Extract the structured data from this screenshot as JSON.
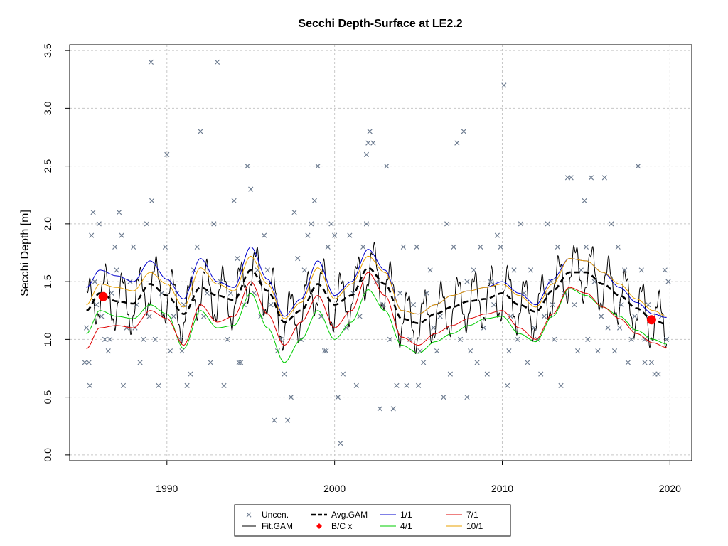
{
  "chart_data": {
    "type": "line",
    "title": "Secchi Depth-Surface at LE2.2",
    "xlabel": "",
    "ylabel": "Secchi Depth [m]",
    "xlim": [
      1984.2,
      2021.3
    ],
    "ylim": [
      -0.05,
      3.55
    ],
    "xticks": [
      1990,
      2000,
      2010,
      2020
    ],
    "yticks": [
      0.0,
      0.5,
      1.0,
      1.5,
      2.0,
      2.5,
      3.0,
      3.5
    ],
    "grid": true,
    "legend_position": "bottom",
    "legend": [
      "Uncen.",
      "Fit.GAM",
      "Avg.GAM",
      "B/C x",
      "1/1",
      "4/1",
      "7/1",
      "10/1"
    ],
    "colors": {
      "uncen": "#6b7a8f",
      "fit_gam": "#000000",
      "avg_gam": "#000000",
      "bc": "#ff0000",
      "s1_1": "#0000cc",
      "s4_1": "#00cc00",
      "s7_1": "#dd0000",
      "s10_1": "#e8a000"
    },
    "observations": [
      [
        1985.1,
        0.8
      ],
      [
        1985.2,
        1.1
      ],
      [
        1985.35,
        0.8
      ],
      [
        1985.4,
        0.6
      ],
      [
        1985.5,
        1.9
      ],
      [
        1985.6,
        2.1
      ],
      [
        1985.7,
        1.5
      ],
      [
        1985.8,
        1.3
      ],
      [
        1985.95,
        2.0
      ],
      [
        1986.1,
        1.2
      ],
      [
        1986.3,
        1.0
      ],
      [
        1986.5,
        0.9
      ],
      [
        1986.7,
        1.4
      ],
      [
        1986.9,
        1.8
      ],
      [
        1987.0,
        1.6
      ],
      [
        1987.15,
        2.1
      ],
      [
        1987.3,
        1.9
      ],
      [
        1987.4,
        0.6
      ],
      [
        1987.6,
        1.1
      ],
      [
        1987.8,
        1.5
      ],
      [
        1988.0,
        1.8
      ],
      [
        1988.2,
        1.3
      ],
      [
        1988.4,
        0.8
      ],
      [
        1988.6,
        1.0
      ],
      [
        1988.8,
        2.0
      ],
      [
        1988.95,
        1.2
      ],
      [
        1989.1,
        2.2
      ],
      [
        1989.05,
        3.4
      ],
      [
        1989.3,
        1.0
      ],
      [
        1989.5,
        0.6
      ],
      [
        1989.7,
        1.4
      ],
      [
        1989.9,
        1.8
      ],
      [
        1990.0,
        2.6
      ],
      [
        1990.2,
        0.9
      ],
      [
        1990.4,
        1.2
      ],
      [
        1990.6,
        1.4
      ],
      [
        1990.8,
        1.0
      ],
      [
        1991.0,
        1.3
      ],
      [
        1991.2,
        0.6
      ],
      [
        1991.4,
        0.7
      ],
      [
        1991.6,
        1.6
      ],
      [
        1991.8,
        1.8
      ],
      [
        1992.0,
        2.8
      ],
      [
        1992.2,
        1.2
      ],
      [
        1992.4,
        1.4
      ],
      [
        1992.6,
        0.8
      ],
      [
        1992.8,
        2.0
      ],
      [
        1993.0,
        3.4
      ],
      [
        1993.2,
        1.5
      ],
      [
        1993.4,
        0.6
      ],
      [
        1993.6,
        1.0
      ],
      [
        1993.8,
        1.4
      ],
      [
        1994.0,
        2.2
      ],
      [
        1994.2,
        1.7
      ],
      [
        1994.4,
        0.8
      ],
      [
        1994.6,
        1.3
      ],
      [
        1994.8,
        2.5
      ],
      [
        1995.0,
        2.3
      ],
      [
        1995.2,
        1.4
      ],
      [
        1995.4,
        1.6
      ],
      [
        1995.6,
        1.2
      ],
      [
        1995.8,
        1.9
      ],
      [
        1996.0,
        1.6
      ],
      [
        1996.2,
        1.3
      ],
      [
        1996.4,
        0.3
      ],
      [
        1996.6,
        0.9
      ],
      [
        1996.8,
        1.0
      ],
      [
        1997.0,
        0.7
      ],
      [
        1997.2,
        0.3
      ],
      [
        1997.4,
        0.5
      ],
      [
        1997.6,
        2.1
      ],
      [
        1997.8,
        1.7
      ],
      [
        1998.0,
        1.0
      ],
      [
        1998.2,
        1.6
      ],
      [
        1998.4,
        1.9
      ],
      [
        1998.6,
        2.0
      ],
      [
        1998.8,
        2.2
      ],
      [
        1999.0,
        2.5
      ],
      [
        1999.2,
        1.2
      ],
      [
        1999.4,
        0.9
      ],
      [
        1999.6,
        1.8
      ],
      [
        1999.8,
        2.0
      ],
      [
        2000.0,
        1.9
      ],
      [
        2000.2,
        0.5
      ],
      [
        2000.35,
        0.1
      ],
      [
        2000.5,
        0.7
      ],
      [
        2000.7,
        1.1
      ],
      [
        2000.9,
        1.9
      ],
      [
        2001.1,
        1.4
      ],
      [
        2001.3,
        0.6
      ],
      [
        2001.5,
        1.2
      ],
      [
        2001.7,
        1.8
      ],
      [
        2001.9,
        2.6
      ],
      [
        2002.0,
        2.7
      ],
      [
        2002.1,
        2.8
      ],
      [
        2002.3,
        2.7
      ],
      [
        2002.5,
        1.5
      ],
      [
        2002.7,
        0.4
      ],
      [
        2002.9,
        1.3
      ],
      [
        2003.1,
        2.5
      ],
      [
        2003.3,
        1.0
      ],
      [
        2003.5,
        0.4
      ],
      [
        2003.7,
        0.6
      ],
      [
        2003.9,
        1.4
      ],
      [
        2004.1,
        1.8
      ],
      [
        2004.3,
        0.6
      ],
      [
        2004.5,
        1.0
      ],
      [
        2004.7,
        1.3
      ],
      [
        2004.9,
        1.8
      ],
      [
        2005.1,
        0.9
      ],
      [
        2005.3,
        0.8
      ],
      [
        2005.5,
        1.4
      ],
      [
        2005.7,
        1.6
      ],
      [
        2005.9,
        1.1
      ],
      [
        2006.1,
        0.9
      ],
      [
        2006.3,
        1.2
      ],
      [
        2006.5,
        0.5
      ],
      [
        2006.7,
        2.0
      ],
      [
        2006.9,
        0.7
      ],
      [
        2007.1,
        1.8
      ],
      [
        2007.3,
        2.7
      ],
      [
        2007.5,
        1.0
      ],
      [
        2007.7,
        2.8
      ],
      [
        2007.9,
        1.5
      ],
      [
        2008.1,
        0.9
      ],
      [
        2008.3,
        1.6
      ],
      [
        2008.5,
        0.8
      ],
      [
        2008.7,
        1.8
      ],
      [
        2008.9,
        1.1
      ],
      [
        2009.1,
        0.7
      ],
      [
        2009.3,
        1.5
      ],
      [
        2009.5,
        1.3
      ],
      [
        2009.7,
        1.9
      ],
      [
        2009.9,
        1.8
      ],
      [
        2010.1,
        3.2
      ],
      [
        2010.3,
        0.6
      ],
      [
        2010.5,
        1.2
      ],
      [
        2010.7,
        1.6
      ],
      [
        2010.9,
        1.0
      ],
      [
        2011.1,
        2.0
      ],
      [
        2011.3,
        1.4
      ],
      [
        2011.5,
        0.8
      ],
      [
        2011.7,
        1.6
      ],
      [
        2011.9,
        1.1
      ],
      [
        2012.1,
        1.0
      ],
      [
        2012.3,
        0.7
      ],
      [
        2012.5,
        1.2
      ],
      [
        2012.7,
        2.0
      ],
      [
        2012.9,
        1.5
      ],
      [
        2013.1,
        1.0
      ],
      [
        2013.3,
        1.8
      ],
      [
        2013.5,
        0.6
      ],
      [
        2013.7,
        1.4
      ],
      [
        2013.9,
        2.4
      ],
      [
        2014.1,
        2.4
      ],
      [
        2014.3,
        1.3
      ],
      [
        2014.5,
        0.9
      ],
      [
        2014.7,
        1.6
      ],
      [
        2014.9,
        2.2
      ],
      [
        2015.1,
        1.0
      ],
      [
        2015.3,
        2.4
      ],
      [
        2015.5,
        1.5
      ],
      [
        2015.7,
        0.9
      ],
      [
        2015.9,
        1.2
      ],
      [
        2016.1,
        2.4
      ],
      [
        2016.3,
        1.1
      ],
      [
        2016.5,
        2.0
      ],
      [
        2016.7,
        0.9
      ],
      [
        2016.9,
        1.8
      ],
      [
        2017.1,
        1.3
      ],
      [
        2017.3,
        1.6
      ],
      [
        2017.5,
        0.8
      ],
      [
        2017.7,
        1.0
      ],
      [
        2017.9,
        1.2
      ],
      [
        2018.1,
        2.5
      ],
      [
        2018.3,
        1.6
      ],
      [
        2018.5,
        1.0
      ],
      [
        2018.7,
        1.3
      ],
      [
        2018.9,
        0.8
      ],
      [
        2019.1,
        0.7
      ],
      [
        2019.3,
        0.7
      ],
      [
        2019.5,
        1.2
      ],
      [
        2019.7,
        1.6
      ],
      [
        2019.9,
        1.5
      ],
      [
        2019.8,
        1.0
      ],
      [
        1986.6,
        1.0
      ],
      [
        1988.1,
        1.1
      ],
      [
        1990.9,
        0.9
      ],
      [
        1994.3,
        0.8
      ],
      [
        1999.5,
        0.9
      ],
      [
        2001.9,
        2.0
      ],
      [
        2005.0,
        0.6
      ],
      [
        2007.9,
        0.5
      ],
      [
        2010.4,
        0.9
      ],
      [
        2013.0,
        1.3
      ],
      [
        2015.0,
        1.8
      ],
      [
        2017.0,
        1.1
      ],
      [
        2018.5,
        0.8
      ]
    ],
    "fit_gam_daily": {
      "trend_source": "avg_gam",
      "seasonal_amplitude": 0.22,
      "cycles_per_year": 1
    },
    "avg_gam": {
      "x": [
        1985.2,
        1986.0,
        1987.0,
        1988.0,
        1989.0,
        1990.0,
        1991.0,
        1992.0,
        1993.0,
        1994.0,
        1995.0,
        1996.0,
        1997.0,
        1998.0,
        1999.0,
        2000.0,
        2001.0,
        2002.0,
        2003.0,
        2004.0,
        2005.0,
        2006.0,
        2007.0,
        2008.0,
        2009.0,
        2010.0,
        2011.0,
        2012.0,
        2013.0,
        2014.0,
        2015.0,
        2016.0,
        2017.0,
        2018.0,
        2019.0,
        2019.8
      ],
      "y": [
        1.25,
        1.4,
        1.33,
        1.31,
        1.48,
        1.38,
        1.22,
        1.45,
        1.38,
        1.34,
        1.6,
        1.42,
        1.15,
        1.25,
        1.48,
        1.3,
        1.38,
        1.62,
        1.48,
        1.18,
        1.14,
        1.22,
        1.28,
        1.33,
        1.35,
        1.4,
        1.3,
        1.24,
        1.42,
        1.58,
        1.58,
        1.48,
        1.38,
        1.27,
        1.17,
        1.13
      ]
    },
    "series": [
      {
        "name": "1/1",
        "color": "#0000cc",
        "x": [
          1985.2,
          1986.0,
          1987.0,
          1988.0,
          1989.0,
          1990.0,
          1991.0,
          1992.0,
          1993.0,
          1994.0,
          1995.0,
          1996.0,
          1997.0,
          1998.0,
          1999.0,
          2000.0,
          2001.0,
          2002.0,
          2003.0,
          2004.0,
          2005.0,
          2006.0,
          2007.0,
          2008.0,
          2009.0,
          2010.0,
          2011.0,
          2012.0,
          2013.0,
          2014.0,
          2015.0,
          2016.0,
          2017.0,
          2018.0,
          2019.0,
          2019.8
        ],
        "y": [
          1.45,
          1.6,
          1.55,
          1.5,
          1.68,
          1.52,
          1.35,
          1.7,
          1.5,
          1.45,
          1.8,
          1.52,
          1.2,
          1.35,
          1.68,
          1.38,
          1.5,
          1.78,
          1.6,
          1.25,
          1.22,
          1.3,
          1.38,
          1.42,
          1.45,
          1.5,
          1.4,
          1.3,
          1.52,
          1.7,
          1.68,
          1.58,
          1.45,
          1.32,
          1.22,
          1.19
        ]
      },
      {
        "name": "4/1",
        "color": "#00cc00",
        "x": [
          1985.2,
          1986.0,
          1987.0,
          1988.0,
          1989.0,
          1990.0,
          1991.0,
          1992.0,
          1993.0,
          1994.0,
          1995.0,
          1996.0,
          1997.0,
          1998.0,
          1999.0,
          2000.0,
          2001.0,
          2002.0,
          2003.0,
          2004.0,
          2005.0,
          2006.0,
          2007.0,
          2008.0,
          2009.0,
          2010.0,
          2011.0,
          2012.0,
          2013.0,
          2014.0,
          2015.0,
          2016.0,
          2017.0,
          2018.0,
          2019.0,
          2019.8
        ],
        "y": [
          1.05,
          1.25,
          1.2,
          1.18,
          1.3,
          1.22,
          0.92,
          1.25,
          1.1,
          1.12,
          1.4,
          1.1,
          0.8,
          1.0,
          1.25,
          1.0,
          1.15,
          1.43,
          1.25,
          0.95,
          0.88,
          0.98,
          1.05,
          1.12,
          1.18,
          1.2,
          1.05,
          0.98,
          1.2,
          1.44,
          1.38,
          1.28,
          1.2,
          1.08,
          1.0,
          0.96
        ]
      },
      {
        "name": "7/1",
        "color": "#dd0000",
        "x": [
          1985.2,
          1986.0,
          1987.0,
          1988.0,
          1989.0,
          1990.0,
          1991.0,
          1992.0,
          1993.0,
          1994.0,
          1995.0,
          1996.0,
          1997.0,
          1998.0,
          1999.0,
          2000.0,
          2001.0,
          2002.0,
          2003.0,
          2004.0,
          2005.0,
          2006.0,
          2007.0,
          2008.0,
          2009.0,
          2010.0,
          2011.0,
          2012.0,
          2013.0,
          2014.0,
          2015.0,
          2016.0,
          2017.0,
          2018.0,
          2019.0,
          2019.8
        ],
        "y": [
          0.92,
          1.1,
          1.12,
          1.1,
          1.25,
          1.18,
          0.95,
          1.3,
          1.15,
          1.2,
          1.5,
          1.22,
          0.95,
          1.15,
          1.38,
          1.1,
          1.25,
          1.58,
          1.38,
          1.02,
          0.95,
          1.05,
          1.12,
          1.18,
          1.22,
          1.25,
          1.1,
          1.0,
          1.22,
          1.45,
          1.4,
          1.28,
          1.18,
          1.05,
          0.97,
          0.93
        ]
      },
      {
        "name": "10/1",
        "color": "#e8a000",
        "x": [
          1985.2,
          1986.0,
          1987.0,
          1988.0,
          1989.0,
          1990.0,
          1991.0,
          1992.0,
          1993.0,
          1994.0,
          1995.0,
          1996.0,
          1997.0,
          1998.0,
          1999.0,
          2000.0,
          2001.0,
          2002.0,
          2003.0,
          2004.0,
          2005.0,
          2006.0,
          2007.0,
          2008.0,
          2009.0,
          2010.0,
          2011.0,
          2012.0,
          2013.0,
          2014.0,
          2015.0,
          2016.0,
          2017.0,
          2018.0,
          2019.0,
          2019.8
        ],
        "y": [
          1.3,
          1.48,
          1.45,
          1.42,
          1.58,
          1.48,
          1.28,
          1.62,
          1.48,
          1.42,
          1.72,
          1.48,
          1.18,
          1.32,
          1.62,
          1.35,
          1.48,
          1.72,
          1.58,
          1.25,
          1.22,
          1.3,
          1.38,
          1.42,
          1.45,
          1.48,
          1.38,
          1.28,
          1.48,
          1.7,
          1.68,
          1.58,
          1.48,
          1.35,
          1.25,
          1.2
        ]
      }
    ],
    "bc_points": [
      [
        1986.2,
        1.37
      ],
      [
        2018.9,
        1.17
      ]
    ]
  }
}
